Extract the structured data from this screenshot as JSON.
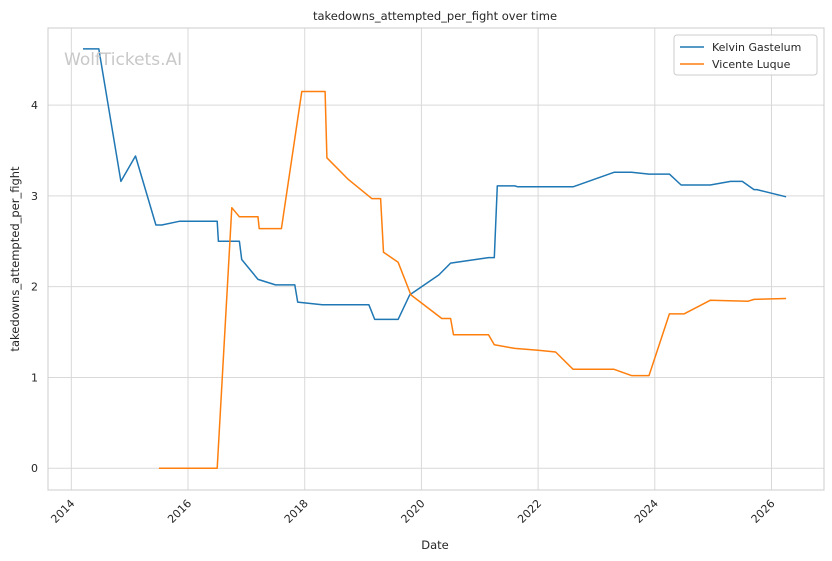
{
  "chart_data": {
    "type": "line",
    "title": "takedowns_attempted_per_fight over time",
    "xlabel": "Date",
    "ylabel": "takedowns_attempted_per_fight",
    "watermark": "WolfTickets.AI",
    "x_ticks": [
      "2014",
      "2016",
      "2018",
      "2020",
      "2022",
      "2024",
      "2026"
    ],
    "y_ticks": [
      "0",
      "1",
      "2",
      "3",
      "4"
    ],
    "xlim": [
      2013.6,
      2026.9
    ],
    "ylim": [
      -0.24,
      4.85
    ],
    "grid": true,
    "legend_position": "top-right",
    "colors": {
      "Kelvin Gastelum": "#1f77b4",
      "Vicente Luque": "#ff7f0e"
    },
    "series": [
      {
        "name": "Kelvin Gastelum",
        "x": [
          2014.2,
          2014.45,
          2014.47,
          2014.85,
          2015.1,
          2015.45,
          2015.55,
          2015.85,
          2016.5,
          2016.52,
          2016.88,
          2016.92,
          2017.2,
          2017.5,
          2017.83,
          2017.88,
          2018.3,
          2019.1,
          2019.2,
          2019.6,
          2019.8,
          2020.3,
          2020.5,
          2021.15,
          2021.25,
          2021.3,
          2021.6,
          2021.65,
          2022.6,
          2023.3,
          2023.6,
          2023.9,
          2024.25,
          2024.45,
          2024.95,
          2025.3,
          2025.5,
          2025.7,
          2025.75,
          2026.25
        ],
        "y": [
          4.62,
          4.62,
          4.62,
          3.16,
          3.44,
          2.68,
          2.68,
          2.72,
          2.72,
          2.5,
          2.5,
          2.3,
          2.08,
          2.02,
          2.02,
          1.83,
          1.8,
          1.8,
          1.64,
          1.64,
          1.91,
          2.13,
          2.26,
          2.32,
          2.32,
          3.11,
          3.11,
          3.1,
          3.1,
          3.26,
          3.26,
          3.24,
          3.24,
          3.12,
          3.12,
          3.16,
          3.16,
          3.07,
          3.07,
          2.99
        ]
      },
      {
        "name": "Vicente Luque",
        "x": [
          2015.5,
          2016.5,
          2016.75,
          2016.88,
          2017.2,
          2017.22,
          2017.6,
          2017.95,
          2018.35,
          2018.38,
          2018.75,
          2019.15,
          2019.3,
          2019.35,
          2019.6,
          2019.82,
          2020.35,
          2020.5,
          2020.55,
          2021.15,
          2021.25,
          2021.6,
          2022.0,
          2022.3,
          2022.6,
          2023.3,
          2023.6,
          2023.9,
          2024.25,
          2024.5,
          2024.95,
          2025.6,
          2025.7,
          2026.25
        ],
        "y": [
          0.0,
          0.0,
          2.87,
          2.77,
          2.77,
          2.64,
          2.64,
          4.15,
          4.15,
          3.42,
          3.18,
          2.97,
          2.97,
          2.38,
          2.27,
          1.91,
          1.65,
          1.65,
          1.47,
          1.47,
          1.36,
          1.32,
          1.3,
          1.28,
          1.09,
          1.09,
          1.02,
          1.02,
          1.7,
          1.7,
          1.85,
          1.84,
          1.86,
          1.87
        ]
      }
    ]
  }
}
